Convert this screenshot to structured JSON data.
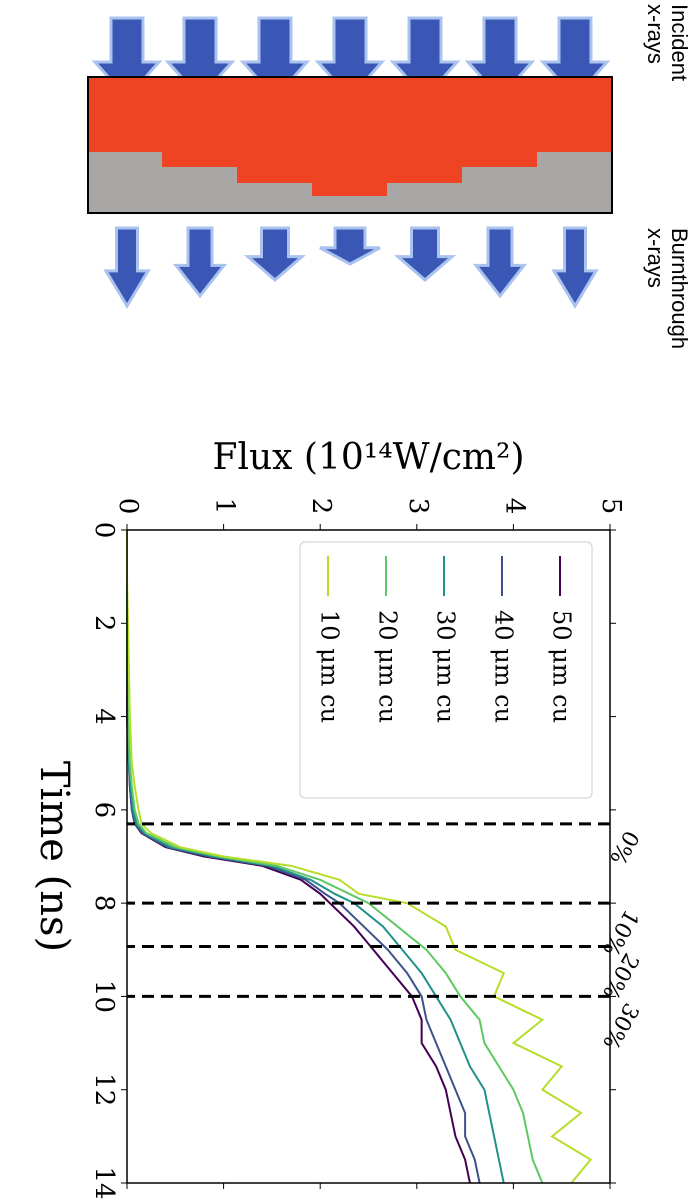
{
  "diagram": {
    "incident_label": [
      "Incident",
      "x-rays"
    ],
    "burnthrough_label": [
      "Burnthrough",
      "x-rays"
    ]
  },
  "chart_data": {
    "type": "line",
    "xlabel": "Time (ns)",
    "ylabel": "Flux (10¹⁴W/cm²)",
    "x": [
      0,
      1,
      2,
      3,
      4,
      5,
      5.5,
      6,
      6.3,
      6.5,
      6.8,
      7,
      7.2,
      7.5,
      7.8,
      8,
      8.5,
      9,
      9.5,
      10,
      10.5,
      11,
      11.5,
      12,
      12.5,
      13,
      13.5,
      14
    ],
    "series": [
      {
        "name": "50 μm cu",
        "color": "#440154",
        "values": [
          0,
          0,
          0,
          0,
          0,
          0.02,
          0.03,
          0.05,
          0.08,
          0.15,
          0.4,
          0.8,
          1.4,
          1.8,
          2.0,
          2.1,
          2.35,
          2.55,
          2.75,
          2.95,
          3.05,
          3.05,
          3.2,
          3.3,
          3.35,
          3.4,
          3.5,
          3.55
        ]
      },
      {
        "name": "40 μm cu",
        "color": "#3b528b",
        "values": [
          0,
          0,
          0,
          0,
          0,
          0.02,
          0.03,
          0.05,
          0.08,
          0.16,
          0.42,
          0.85,
          1.45,
          1.85,
          2.05,
          2.2,
          2.45,
          2.7,
          2.9,
          3.05,
          3.1,
          3.2,
          3.3,
          3.4,
          3.5,
          3.5,
          3.6,
          3.65
        ]
      },
      {
        "name": "30 μm cu",
        "color": "#21918c",
        "values": [
          0,
          0,
          0,
          0,
          0.01,
          0.02,
          0.04,
          0.06,
          0.1,
          0.18,
          0.45,
          0.9,
          1.5,
          1.9,
          2.15,
          2.35,
          2.65,
          2.85,
          3.05,
          3.2,
          3.35,
          3.45,
          3.55,
          3.7,
          3.75,
          3.8,
          3.85,
          3.9
        ]
      },
      {
        "name": "20 μm cu",
        "color": "#5ec962",
        "values": [
          0,
          0,
          0,
          0,
          0.01,
          0.03,
          0.05,
          0.08,
          0.12,
          0.2,
          0.5,
          0.95,
          1.55,
          2.0,
          2.3,
          2.5,
          2.8,
          3.1,
          3.3,
          3.45,
          3.65,
          3.7,
          3.85,
          4.0,
          4.1,
          4.15,
          4.2,
          4.3
        ]
      },
      {
        "name": "10 μm cu",
        "color": "#b5de2b",
        "values": [
          0,
          0,
          0.01,
          0.02,
          0.03,
          0.05,
          0.08,
          0.12,
          0.15,
          0.25,
          0.55,
          1.0,
          1.7,
          2.2,
          2.4,
          2.9,
          3.3,
          3.4,
          3.9,
          3.8,
          4.3,
          4.0,
          4.5,
          4.3,
          4.7,
          4.4,
          4.8,
          4.6
        ]
      }
    ],
    "xlim": [
      0,
      14
    ],
    "xticks": [
      0,
      2,
      4,
      6,
      8,
      10,
      12,
      14
    ],
    "ylim": [
      0,
      5
    ],
    "yticks": [
      0,
      1,
      2,
      3,
      4,
      5
    ],
    "markers": [
      {
        "x": 6.3,
        "label": "0%"
      },
      {
        "x": 8,
        "label": "10%"
      },
      {
        "x": 8.93,
        "label": "20%"
      },
      {
        "x": 10,
        "label": "30%"
      }
    ],
    "legend": "upper left"
  }
}
